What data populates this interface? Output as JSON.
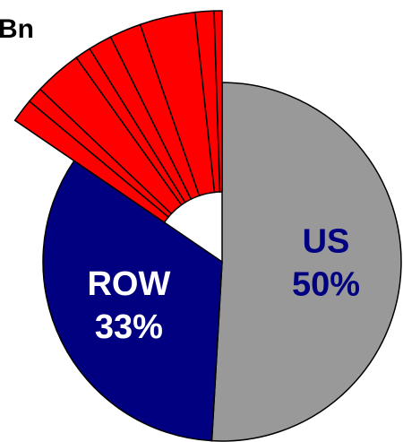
{
  "header_fragment": "Bn",
  "chart_data": {
    "type": "pie",
    "title": "",
    "slices": [
      {
        "name": "US",
        "value": 50,
        "color": "#999999",
        "label_lines": [
          "US",
          "50%"
        ],
        "exploded": false
      },
      {
        "name": "ROW",
        "value": 33,
        "color": "#000080",
        "label_lines": [
          "ROW",
          "33%"
        ],
        "exploded": false
      },
      {
        "name": "",
        "value": 1.5,
        "color": "#ff0000",
        "exploded": true
      },
      {
        "name": "",
        "value": 1.0,
        "color": "#ff0000",
        "exploded": true
      },
      {
        "name": "",
        "value": 3.0,
        "color": "#ff0000",
        "exploded": true
      },
      {
        "name": "",
        "value": 1.0,
        "color": "#ff0000",
        "exploded": true
      },
      {
        "name": "",
        "value": 1.5,
        "color": "#ff0000",
        "exploded": true
      },
      {
        "name": "",
        "value": 2.0,
        "color": "#ff0000",
        "exploded": true
      },
      {
        "name": "",
        "value": 3.5,
        "color": "#ff0000",
        "exploded": true
      },
      {
        "name": "",
        "value": 1.2,
        "color": "#ff0000",
        "exploded": true
      },
      {
        "name": "",
        "value": 0.5,
        "color": "#ff0000",
        "exploded": true
      }
    ],
    "start_angle_deg": 0,
    "direction": "clockwise",
    "label_color": "#ffffff",
    "us_label_color": "#000080",
    "outline_color": "#000000"
  }
}
